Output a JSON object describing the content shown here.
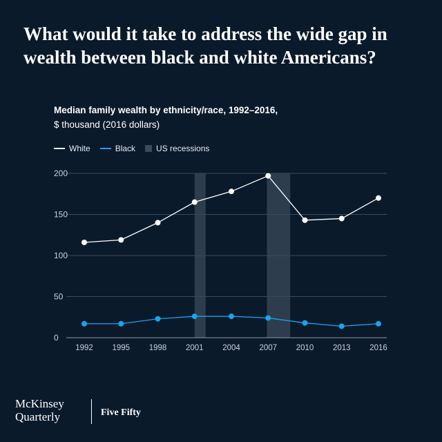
{
  "headline": "What would it take to address the wide gap in wealth between black and white Americans?",
  "footer": {
    "brand_line1": "McKinsey",
    "brand_line2": "Quarterly",
    "series": "Five Fifty"
  },
  "legend": {
    "white": "White",
    "black": "Black",
    "recessions": "US recessions"
  },
  "colors": {
    "background": "#0b1a2b",
    "white_series": "#ffffff",
    "black_series": "#1aa3ee",
    "recession_band": "#3a4a5a",
    "grid": "#3c4a59"
  },
  "chart_data": {
    "type": "line",
    "title": "Median family wealth by ethnicity/race, 1992–2016,",
    "subtitle": "$ thousand (2016 dollars)",
    "x": [
      "1992",
      "1995",
      "1998",
      "2001",
      "2004",
      "2007",
      "2010",
      "2013",
      "2016"
    ],
    "ylim": [
      0,
      200
    ],
    "yticks": [
      0,
      50,
      100,
      150,
      200
    ],
    "grid": true,
    "legend_position": "top-left",
    "series": [
      {
        "name": "White",
        "values": [
          116,
          119,
          140,
          165,
          178,
          197,
          143,
          145,
          170
        ]
      },
      {
        "name": "Black",
        "values": [
          17,
          17,
          23,
          26,
          26,
          24,
          18,
          14,
          17
        ]
      }
    ],
    "recessions": [
      {
        "label": "US recessions",
        "start": 2001.0,
        "end": 2001.9
      },
      {
        "label": "US recessions",
        "start": 2006.9,
        "end": 2008.8
      }
    ]
  }
}
